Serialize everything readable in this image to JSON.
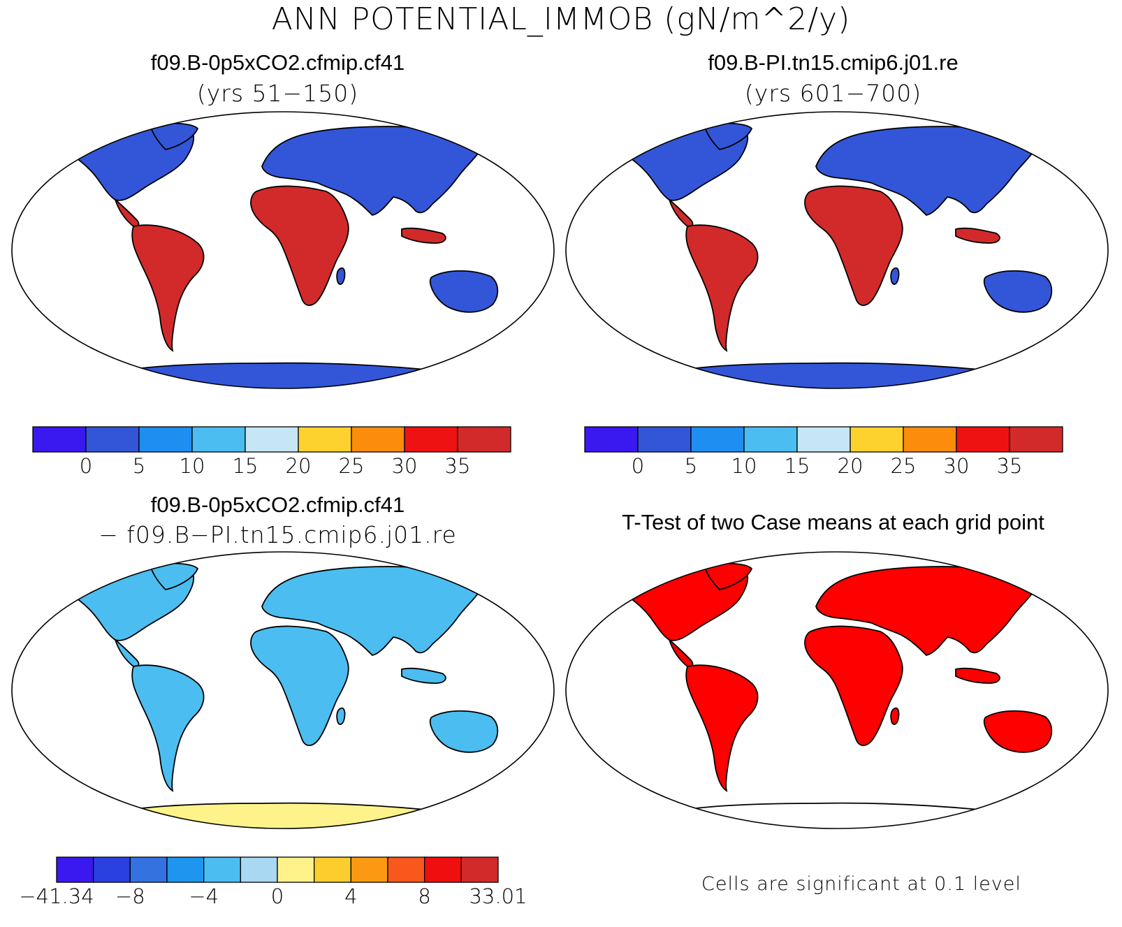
{
  "title": "ANN POTENTIAL_IMMOB (gN/m^2/y)",
  "panels": {
    "case1": {
      "title": "f09.B-0p5xCO2.cfmip.cf41",
      "subtitle": "(yrs 51−150)"
    },
    "case2": {
      "title": "f09.B-PI.tn15.cmip6.j01.re",
      "subtitle": "(yrs 601−700)"
    },
    "diff": {
      "title": "f09.B-0p5xCO2.cfmip.cf41",
      "subtitle": "− f09.B−PI.tn15.cmip6.j01.re"
    },
    "ttest": {
      "title": "T-Test of two Case means at each grid point",
      "footnote": "Cells are significant at 0.1 level"
    }
  },
  "colorbars": {
    "mean": {
      "colors": [
        "#3a18f0",
        "#3356d8",
        "#1e8ef0",
        "#4cbdf0",
        "#c6e6f5",
        "#fdd22e",
        "#fb8c0c",
        "#ef1212",
        "#d22a2a"
      ],
      "ticks": [
        "0",
        "5",
        "10",
        "15",
        "20",
        "25",
        "30",
        "35"
      ]
    },
    "diff": {
      "colors": [
        "#3a18f0",
        "#2a40e0",
        "#3472e2",
        "#1e96f0",
        "#4cbdf0",
        "#a8d8f2",
        "#fdf38a",
        "#fdcd2e",
        "#fb9a12",
        "#f8581c",
        "#ef0f0f",
        "#d22a2a"
      ],
      "ticks": [
        "−41.34",
        "−8",
        "−4",
        "0",
        "4",
        "8",
        "33.01"
      ]
    }
  },
  "map_colors": {
    "ocean": "#ffffff",
    "land_mean_high_lat": "#3356d8",
    "land_mean_tropics": "#d22a2a",
    "land_diff": "#4cbdf0",
    "antarctica_diff": "#fdf38a",
    "land_ttest": "#ff0000"
  }
}
